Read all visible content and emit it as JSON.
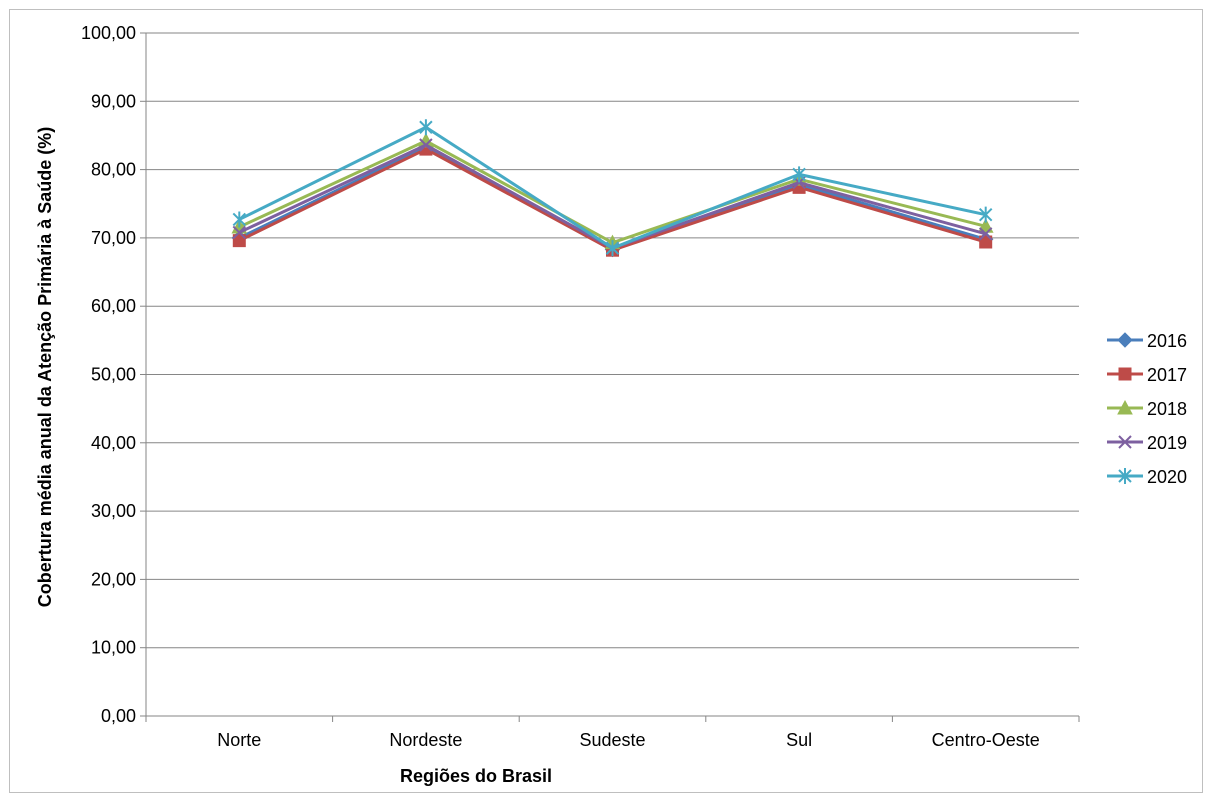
{
  "chart_data": {
    "type": "line",
    "title": "",
    "xlabel": "Regiões do Brasil",
    "ylabel": "Cobertura média anual da Atenção Primária à Saúde (%)",
    "categories": [
      "Norte",
      "Nordeste",
      "Sudeste",
      "Sul",
      "Centro-Oeste"
    ],
    "ylim": [
      0,
      100
    ],
    "y_ticks": [
      "0,00",
      "10,00",
      "20,00",
      "30,00",
      "40,00",
      "50,00",
      "60,00",
      "70,00",
      "80,00",
      "90,00",
      "100,00"
    ],
    "grid": "horizontal",
    "legend_position": "right",
    "series": [
      {
        "name": "2016",
        "color": "#4a7ebb",
        "marker": "diamond",
        "values": [
          70.0,
          83.3,
          68.3,
          77.8,
          69.8
        ]
      },
      {
        "name": "2017",
        "color": "#be4b48",
        "marker": "square",
        "values": [
          69.6,
          83.0,
          68.2,
          77.4,
          69.4
        ]
      },
      {
        "name": "2018",
        "color": "#98b954",
        "marker": "triangle",
        "values": [
          71.6,
          84.2,
          69.3,
          78.6,
          71.7
        ]
      },
      {
        "name": "2019",
        "color": "#7d60a0",
        "marker": "x",
        "values": [
          70.8,
          83.6,
          68.5,
          78.1,
          70.6
        ]
      },
      {
        "name": "2020",
        "color": "#46aac5",
        "marker": "asterisk",
        "values": [
          72.7,
          86.2,
          68.5,
          79.3,
          73.4
        ]
      }
    ]
  }
}
